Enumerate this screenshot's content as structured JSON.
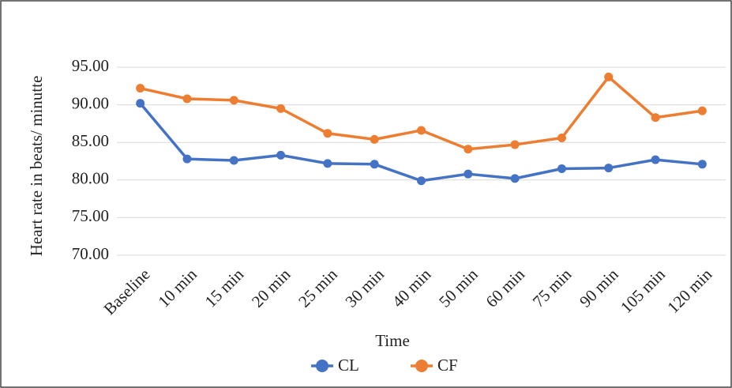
{
  "chart_data": {
    "type": "line",
    "y_label": "Heart rate in beats/ minutte",
    "x_label": "Time",
    "categories": [
      "Baseline",
      "10 min",
      "15 min",
      "20 min",
      "25 min",
      "30 min",
      "40 min",
      "50 min",
      "60 min",
      "75 min",
      "90 min",
      "105 min",
      "120 min"
    ],
    "series": [
      {
        "name": "CL",
        "color": "#4472c4",
        "values": [
          90.2,
          82.8,
          82.6,
          83.3,
          82.2,
          82.1,
          79.9,
          80.8,
          80.2,
          81.5,
          81.6,
          82.7,
          82.1
        ]
      },
      {
        "name": "CF",
        "color": "#ed7d31",
        "values": [
          92.2,
          90.8,
          90.6,
          89.5,
          86.2,
          85.4,
          86.6,
          84.1,
          84.7,
          85.6,
          93.7,
          88.3,
          89.2
        ]
      }
    ],
    "ylim": [
      70,
      95
    ],
    "yticks": [
      {
        "value": 70,
        "label": "70.00"
      },
      {
        "value": 75,
        "label": "75.00"
      },
      {
        "value": 80,
        "label": "80.00"
      },
      {
        "value": 85,
        "label": "85.00"
      },
      {
        "value": 90,
        "label": "90.00"
      },
      {
        "value": 95,
        "label": "95.00"
      }
    ],
    "grid": true
  }
}
